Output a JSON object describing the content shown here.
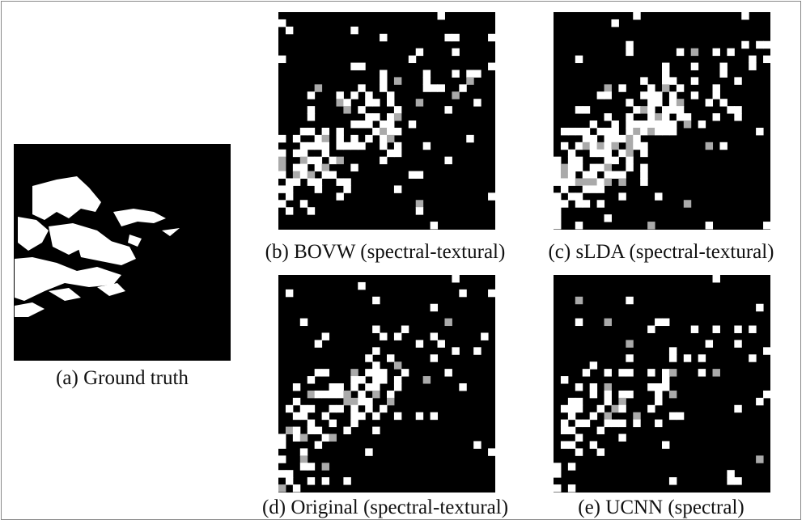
{
  "figure": {
    "panels": [
      {
        "caption": "(a) Ground truth"
      },
      {
        "caption": "(b) BOVW (spectral-textural)"
      },
      {
        "caption": "(c) sLDA (spectral-textural)"
      },
      {
        "caption": "(d) Original (spectral-textural)"
      },
      {
        "caption": "(e) UCNN (spectral)"
      }
    ]
  }
}
